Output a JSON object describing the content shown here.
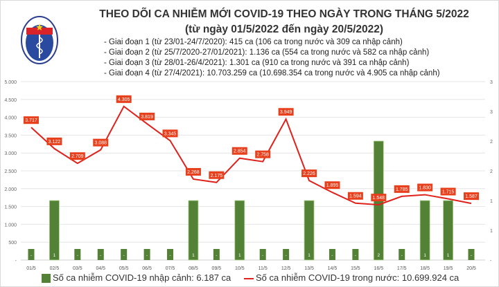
{
  "header": {
    "title": "THEO DÕI CA NHIỄM MỚI COVID-19 THEO NGÀY TRONG THÁNG 5/2022",
    "subtitle": "(từ ngày 01/5/2022 đến ngày 20/5/2022)",
    "notes": [
      "- Giai đoạn 1 (từ 23/01-24/7/2020): 415 ca (106 ca trong nước và 309 ca nhập cảnh)",
      "- Giai đoạn 2 (từ 25/7/2020-27/01/2021): 1.136 ca (554 ca trong nước và 582 ca nhập cảnh)",
      "- Giai đoạn 3 (từ 28/01-26/4/2021): 1.301 ca (910 ca trong nước và 391 ca nhập cảnh)",
      "- Giai đoạn 4 (từ 27/4/2021): 10.703.259 ca (10.698.354 ca trong nước và 4.905 ca nhập cảnh)"
    ],
    "logo_text": "BỘ Y TẾ · MINISTRY OF HEALTH"
  },
  "chart_data": {
    "type": "bar+line",
    "categories": [
      "01/5",
      "02/5",
      "03/5",
      "04/5",
      "05/5",
      "06/5",
      "07/5",
      "08/5",
      "09/5",
      "10/5",
      "11/5",
      "12/5",
      "13/5",
      "14/5",
      "15/5",
      "16/5",
      "17/5",
      "18/5",
      "19/5",
      "20/5"
    ],
    "series": [
      {
        "name": "Số ca nhiễm COVID-19 nhập cảnh: 6.187 ca",
        "type": "bar",
        "axis": "right",
        "color": "#538135",
        "values": [
          0,
          1,
          0,
          0,
          0,
          0,
          0,
          1,
          0,
          1,
          0,
          0,
          1,
          0,
          0,
          2,
          0,
          1,
          1,
          0
        ]
      },
      {
        "name": "Số ca nhiễm COVID-19 trong nước: 10.699.924 ca",
        "type": "line",
        "axis": "left",
        "color": "#e0201b",
        "values": [
          3717,
          3122,
          2709,
          3088,
          4305,
          3819,
          3345,
          2268,
          2175,
          2854,
          2758,
          3949,
          2226,
          1895,
          1594,
          1548,
          1785,
          1830,
          1715,
          1587
        ]
      }
    ],
    "y_left": {
      "range": [
        0,
        5000
      ],
      "ticks": [
        "-",
        "500",
        "1.000",
        "1.500",
        "2.000",
        "2.500",
        "3.000",
        "3.500",
        "4.000",
        "4.500",
        "5.000"
      ]
    },
    "y_right": {
      "range": [
        0,
        3
      ],
      "ticks": [
        "-",
        "1",
        "1",
        "2",
        "2",
        "3",
        "3"
      ]
    },
    "label_color": "#e8401c",
    "grid": true,
    "legend": "bottom"
  }
}
